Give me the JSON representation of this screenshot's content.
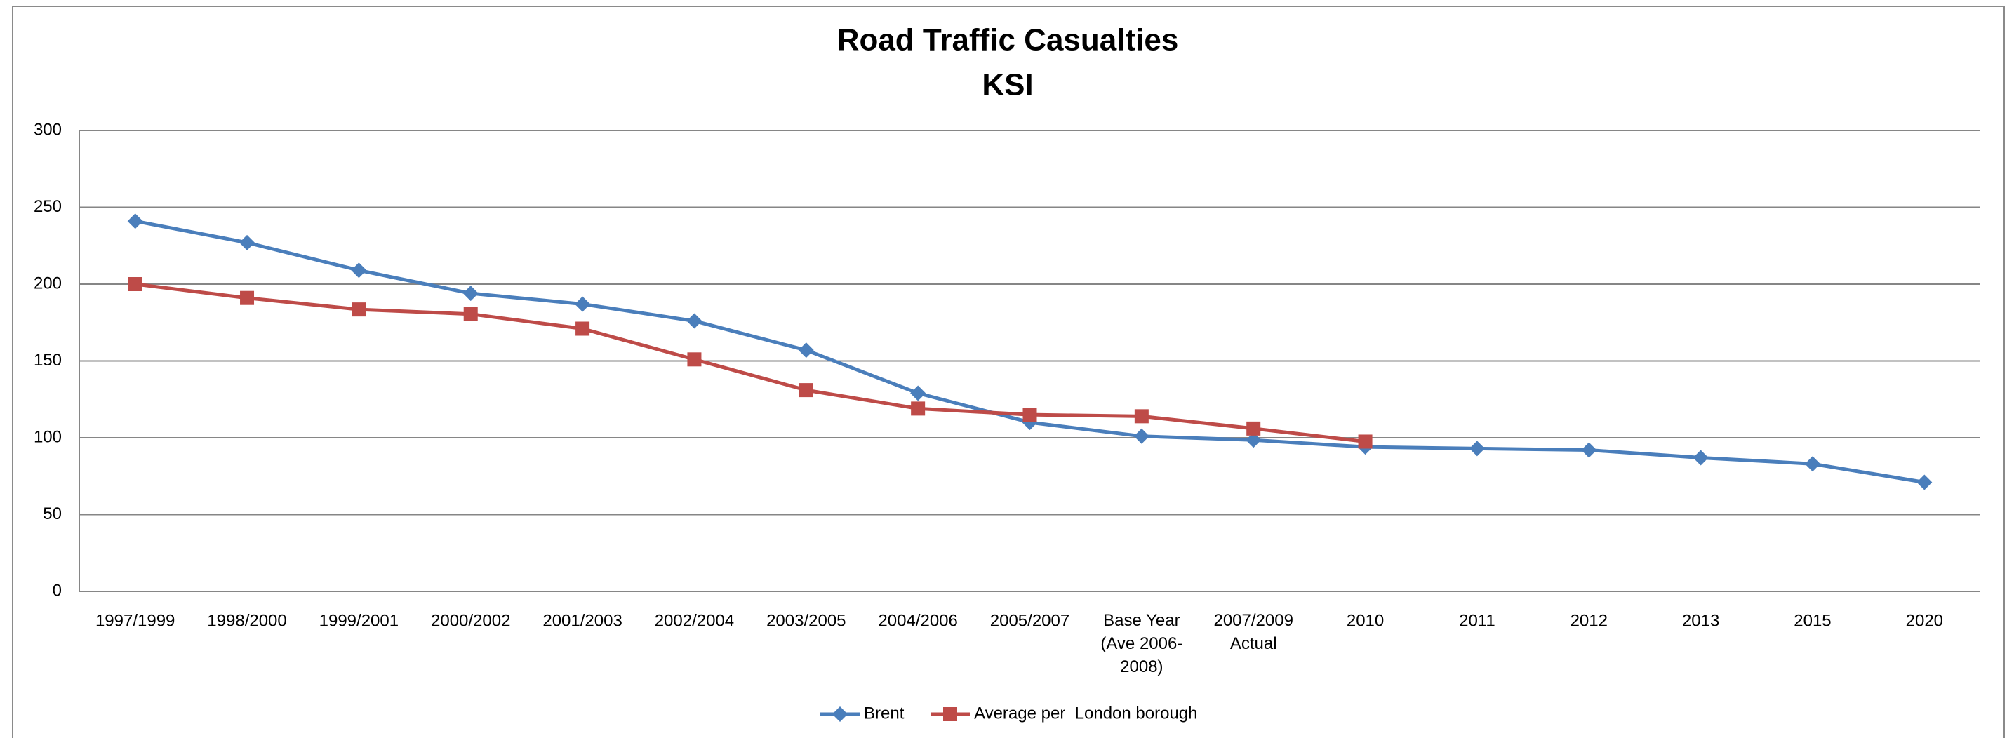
{
  "chart_data": {
    "type": "line",
    "title": "Road Traffic Casualties",
    "subtitle": "KSI",
    "categories": [
      "1997/1999",
      "1998/2000",
      "1999/2001",
      "2000/2002",
      "2001/2003",
      "2002/2004",
      "2003/2005",
      "2004/2006",
      "2005/2007",
      "Base Year\n(Ave 2006-\n2008)",
      "2007/2009\nActual",
      "2010",
      "2011",
      "2012",
      "2013",
      "2015",
      "2020"
    ],
    "series": [
      {
        "name": "Brent",
        "color": "#4a7ebb",
        "marker": "diamond",
        "values": [
          241,
          227,
          209,
          194,
          187,
          176,
          157,
          129,
          110,
          101,
          98.5,
          94,
          93,
          92,
          87,
          83,
          71
        ]
      },
      {
        "name": "Average per  London borough",
        "color": "#be4b48",
        "marker": "square",
        "values": [
          200,
          191,
          183.5,
          180.5,
          171,
          151,
          131,
          119,
          115,
          114,
          106,
          97.5,
          null,
          null,
          null,
          null,
          null
        ]
      }
    ],
    "ylim": [
      0,
      300
    ],
    "yticks": [
      0,
      50,
      100,
      150,
      200,
      250,
      300
    ],
    "grid": true,
    "legend": "bottom"
  }
}
